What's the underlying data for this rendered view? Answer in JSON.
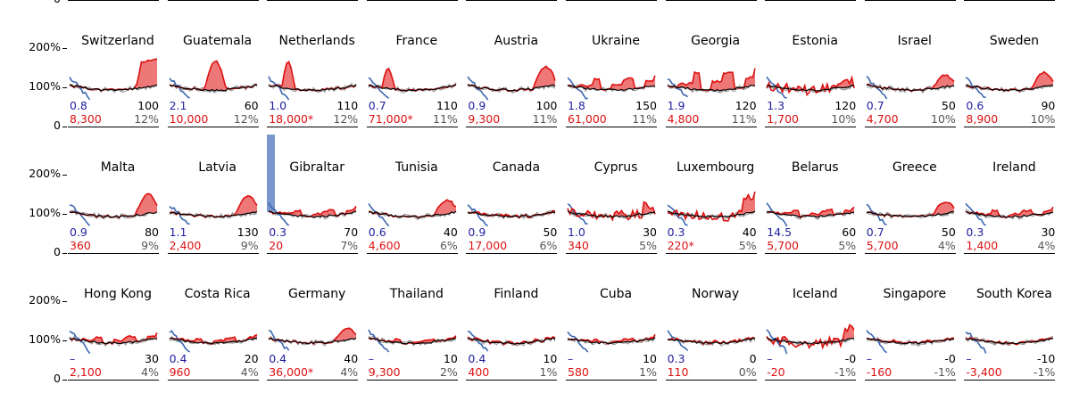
{
  "chart_data": {
    "type": "line",
    "y_ticks": [
      "200%",
      "100%",
      "0"
    ],
    "top_row_y_tick": "0",
    "colors": {
      "blue": "#3a66b0",
      "red": "#dd1111",
      "black": "#000000",
      "gray": "#999999",
      "fill_red": "#ee7777",
      "fill_blue": "#7a98cc"
    },
    "rows": [
      [
        {
          "name": "Switzerland",
          "blue": "0.8",
          "blue_neg": "100",
          "red": "8,300",
          "pct": "12%",
          "style": "spike",
          "peak": 1.7
        },
        {
          "name": "Guatemala",
          "blue": "2.1",
          "blue_neg": "60",
          "red": "10,000",
          "pct": "12%",
          "style": "bump",
          "peak": 1.75
        },
        {
          "name": "Netherlands",
          "blue": "1.0",
          "blue_neg": "110",
          "red": "18,000*",
          "pct": "12%",
          "style": "early",
          "peak": 1.7
        },
        {
          "name": "France",
          "blue": "0.7",
          "blue_neg": "110",
          "red": "71,000*",
          "pct": "11%",
          "style": "early",
          "peak": 1.5
        },
        {
          "name": "Austria",
          "blue": "0.9",
          "blue_neg": "100",
          "red": "9,300",
          "pct": "11%",
          "style": "late",
          "peak": 1.5
        },
        {
          "name": "Ukraine",
          "blue": "1.8",
          "blue_neg": "150",
          "red": "61,000",
          "pct": "11%",
          "style": "step",
          "peak": 1.4
        },
        {
          "name": "Georgia",
          "blue": "1.9",
          "blue_neg": "120",
          "red": "4,800",
          "pct": "11%",
          "style": "step",
          "peak": 1.65
        },
        {
          "name": "Estonia",
          "blue": "1.3",
          "blue_neg": "120",
          "red": "1,700",
          "pct": "10%",
          "style": "noisy",
          "peak": 1.3
        },
        {
          "name": "Israel",
          "blue": "0.7",
          "blue_neg": "50",
          "red": "4,700",
          "pct": "10%",
          "style": "late",
          "peak": 1.3
        },
        {
          "name": "Sweden",
          "blue": "0.6",
          "blue_neg": "90",
          "red": "8,900",
          "pct": "10%",
          "style": "late",
          "peak": 1.35
        }
      ],
      [
        {
          "name": "Malta",
          "blue": "0.9",
          "blue_neg": "80",
          "red": "360",
          "pct": "9%",
          "style": "late",
          "peak": 1.5
        },
        {
          "name": "Latvia",
          "blue": "1.1",
          "blue_neg": "130",
          "red": "2,400",
          "pct": "9%",
          "style": "late",
          "peak": 1.45
        },
        {
          "name": "Gibraltar",
          "blue": "0.3",
          "blue_neg": "70",
          "red": "20",
          "pct": "7%",
          "style": "gib",
          "peak": 1.2
        },
        {
          "name": "Tunisia",
          "blue": "0.6",
          "blue_neg": "40",
          "red": "4,600",
          "pct": "6%",
          "style": "late",
          "peak": 1.35
        },
        {
          "name": "Canada",
          "blue": "0.9",
          "blue_neg": "50",
          "red": "17,000",
          "pct": "6%",
          "style": "flat",
          "peak": 1.15
        },
        {
          "name": "Cyprus",
          "blue": "1.0",
          "blue_neg": "30",
          "red": "340",
          "pct": "5%",
          "style": "noisy",
          "peak": 1.3
        },
        {
          "name": "Luxembourg",
          "blue": "0.3",
          "blue_neg": "40",
          "red": "220*",
          "pct": "5%",
          "style": "noisy",
          "peak": 1.5
        },
        {
          "name": "Belarus",
          "blue": "14.5",
          "blue_neg": "60",
          "red": "5,700",
          "pct": "5%",
          "style": "step",
          "peak": 1.2
        },
        {
          "name": "Greece",
          "blue": "0.7",
          "blue_neg": "50",
          "red": "5,700",
          "pct": "4%",
          "style": "late",
          "peak": 1.3
        },
        {
          "name": "Ireland",
          "blue": "0.3",
          "blue_neg": "30",
          "red": "1,400",
          "pct": "4%",
          "style": "step",
          "peak": 1.2
        }
      ],
      [
        {
          "name": "Hong Kong",
          "blue": "–",
          "blue_neg": "30",
          "red": "2,100",
          "pct": "4%",
          "style": "step",
          "peak": 1.2
        },
        {
          "name": "Costa Rica",
          "blue": "0.4",
          "blue_neg": "20",
          "red": "960",
          "pct": "4%",
          "style": "step",
          "peak": 1.15
        },
        {
          "name": "Germany",
          "blue": "0.4",
          "blue_neg": "40",
          "red": "36,000*",
          "pct": "4%",
          "style": "late",
          "peak": 1.3
        },
        {
          "name": "Thailand",
          "blue": "–",
          "blue_neg": "10",
          "red": "9,300",
          "pct": "2%",
          "style": "step",
          "peak": 1.1
        },
        {
          "name": "Finland",
          "blue": "0.4",
          "blue_neg": "10",
          "red": "400",
          "pct": "1%",
          "style": "flat",
          "peak": 1.1
        },
        {
          "name": "Cuba",
          "blue": "–",
          "blue_neg": "10",
          "red": "580",
          "pct": "1%",
          "style": "step",
          "peak": 1.1
        },
        {
          "name": "Norway",
          "blue": "0.3",
          "blue_neg": "0",
          "red": "110",
          "pct": "0%",
          "style": "flat",
          "peak": 1.05
        },
        {
          "name": "Iceland",
          "blue": "–",
          "blue_neg": "-0",
          "red": "-20",
          "pct": "-1%",
          "style": "noisy",
          "peak": 1.3
        },
        {
          "name": "Singapore",
          "blue": "–",
          "blue_neg": "-0",
          "red": "-160",
          "pct": "-1%",
          "style": "step",
          "peak": 1.05
        },
        {
          "name": "South Korea",
          "blue": "–",
          "blue_neg": "-10",
          "red": "-3,400",
          "pct": "-1%",
          "style": "flat",
          "peak": 1.05
        }
      ]
    ]
  }
}
